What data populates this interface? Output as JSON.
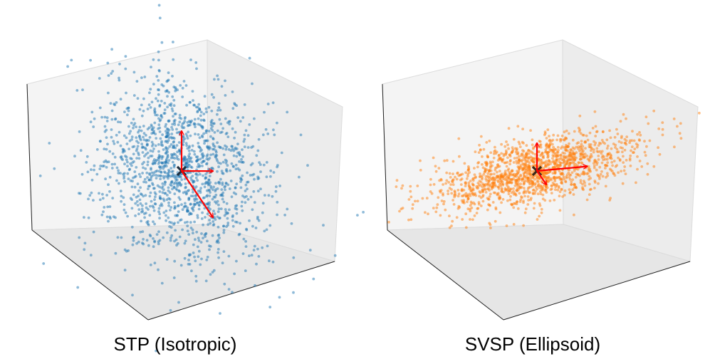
{
  "chart_data": [
    {
      "type": "scatter",
      "projection": "3d",
      "title": "STP (Isotropic)",
      "point_color": "#1f77b4",
      "arrow_color": "#ff0000",
      "center_marker_color": "#1f2f3f",
      "n_points": 1500,
      "distribution": "isotropic gaussian",
      "std": [
        1.0,
        1.0,
        1.0
      ],
      "axes_visible": false,
      "grid": false,
      "arrows": [
        {
          "dir": [
            -1.0,
            0.0,
            -0.2
          ]
        },
        {
          "dir": [
            0.0,
            1.0,
            -0.7
          ]
        },
        {
          "dir": [
            0.0,
            0.0,
            1.0
          ]
        }
      ]
    },
    {
      "type": "scatter",
      "projection": "3d",
      "title": "SVSP (Ellipsoid)",
      "point_color": "#ff7f0e",
      "arrow_color": "#ff0000",
      "center_marker_color": "#3a2a1a",
      "n_points": 1500,
      "distribution": "anisotropic gaussian (ellipsoid)",
      "std": [
        1.6,
        0.3,
        0.35
      ],
      "axes_visible": false,
      "grid": false,
      "arrows": [
        {
          "dir": [
            -1.6,
            0.0,
            -0.2
          ]
        },
        {
          "dir": [
            0.0,
            0.3,
            -0.2
          ]
        },
        {
          "dir": [
            0.0,
            0.0,
            0.7
          ]
        }
      ]
    }
  ]
}
